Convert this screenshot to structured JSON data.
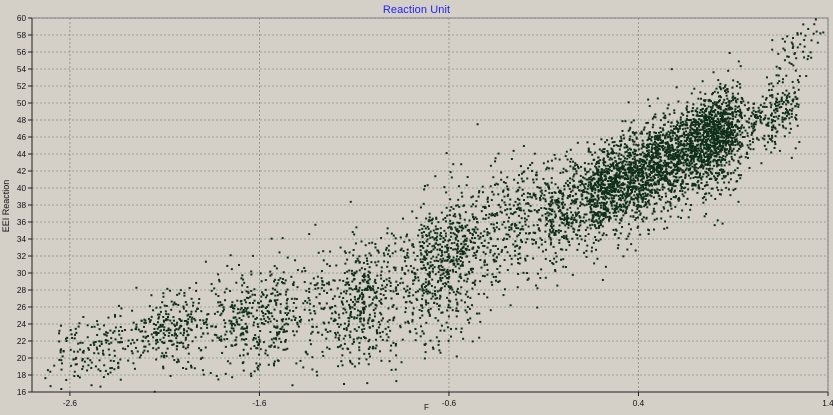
{
  "chart_data": {
    "type": "scatter",
    "title": "Reaction Unit",
    "xlabel": "F",
    "ylabel": "EEI Reaction",
    "xlim": [
      -2.8,
      1.4
    ],
    "ylim": [
      16,
      60
    ],
    "x_ticks": [
      "-2.6",
      "-1.6",
      "-0.6",
      "0.4",
      "1.4"
    ],
    "y_ticks": [
      "16",
      "18",
      "20",
      "22",
      "24",
      "26",
      "28",
      "30",
      "32",
      "34",
      "36",
      "38",
      "40",
      "42",
      "44",
      "46",
      "48",
      "50",
      "52",
      "54",
      "56",
      "58",
      "60"
    ],
    "grid": true,
    "point_color": "#0f2f1a",
    "point_count_estimate": 6000,
    "series": [
      {
        "points_summary": "dense linear positive relationship; approximately y = 38.5 + 10.2x; dense core from x 0.1 to 1.0"
      }
    ],
    "clusters": [
      {
        "x_range": [
          -2.65,
          -1.45
        ],
        "y_center": 23.0,
        "spread": 3.0
      },
      {
        "x_range": [
          -1.45,
          -0.8
        ],
        "y_center": 25.5,
        "spread": 3.5
      },
      {
        "x_range": [
          -0.8,
          -0.1
        ],
        "y_center": 33.0,
        "spread": 4.0
      },
      {
        "x_range": [
          -0.1,
          0.95
        ],
        "y_center": 42.0,
        "spread": 3.2
      },
      {
        "x_range": [
          0.95,
          1.35
        ],
        "y_center": 52.0,
        "spread": 3.0
      }
    ]
  }
}
